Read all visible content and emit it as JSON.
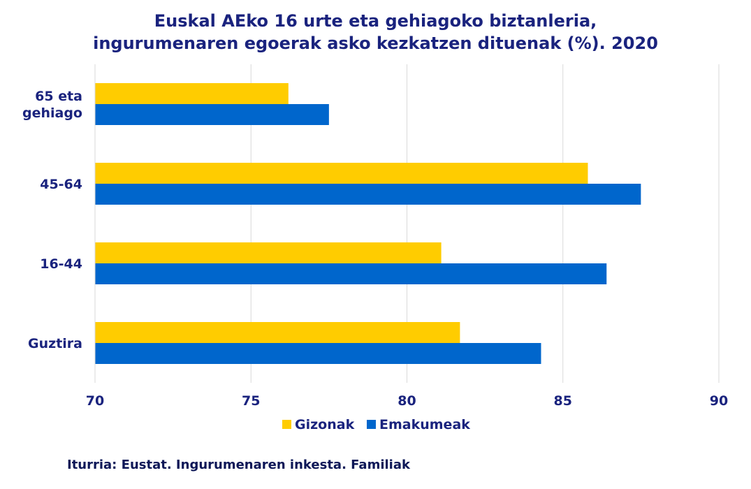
{
  "chart_data": {
    "type": "bar",
    "orientation": "horizontal",
    "title_lines": [
      "Euskal AEko 16 urte eta gehiagoko biztanleria,",
      "ingurumenaren egoerak asko kezkatzen dituenak (%). 2020"
    ],
    "categories": [
      "65 eta gehiago",
      "45-64",
      "16-44",
      "Guztira"
    ],
    "category_label_lines": [
      [
        "65 eta",
        "gehiago"
      ],
      [
        "45-64"
      ],
      [
        "16-44"
      ],
      [
        "Guztira"
      ]
    ],
    "series": [
      {
        "name": "Gizonak",
        "color": "#ffcc00",
        "values": [
          76.2,
          85.8,
          81.1,
          81.7
        ]
      },
      {
        "name": "Emakumeak",
        "color": "#0066cc",
        "values": [
          77.5,
          87.5,
          86.4,
          84.3
        ]
      }
    ],
    "xlim": [
      70,
      90
    ],
    "x_ticks": [
      "70",
      "75",
      "80",
      "85",
      "90"
    ],
    "grid": true,
    "legend_position": "bottom-center"
  },
  "source": "Iturria: Eustat. Ingurumenaren inkesta. Familiak"
}
